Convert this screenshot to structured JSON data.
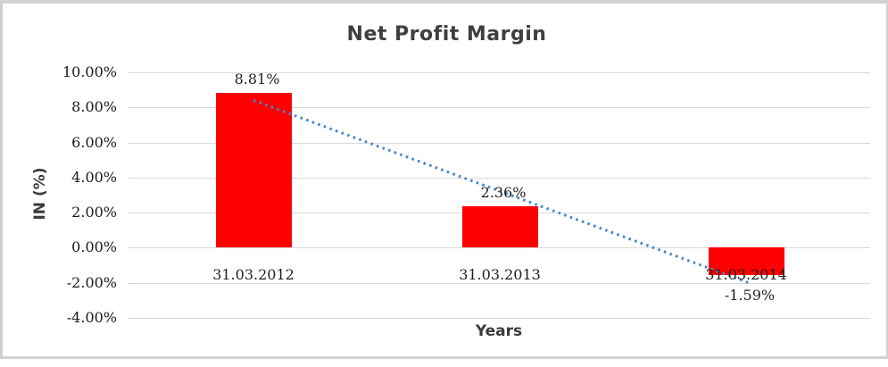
{
  "chart_data": {
    "type": "bar",
    "title": "Net Profit Margin",
    "categories": [
      "31.03.2012",
      "31.03.2013",
      "31.03.2014"
    ],
    "values": [
      8.81,
      2.36,
      -1.59
    ],
    "data_labels": [
      "8.81%",
      "2.36%",
      "-1.59%"
    ],
    "xlabel": "Years",
    "ylabel": "IN (%)",
    "ylim": [
      -4,
      10
    ],
    "yticks": [
      10,
      8,
      6,
      4,
      2,
      0,
      -2,
      -4
    ],
    "ytick_labels": [
      "10.00%",
      "8.00%",
      "6.00%",
      "4.00%",
      "2.00%",
      "0.00%",
      "-2.00%",
      "-4.00%"
    ],
    "grid": true,
    "legend_position": "none",
    "bar_color": "#fe0000",
    "gridline_color": "#d9d9d9",
    "trendline": {
      "type": "linear",
      "style": "dotted",
      "color": "#4a86c8",
      "start_value": 8.4,
      "end_value": -2.0
    }
  }
}
